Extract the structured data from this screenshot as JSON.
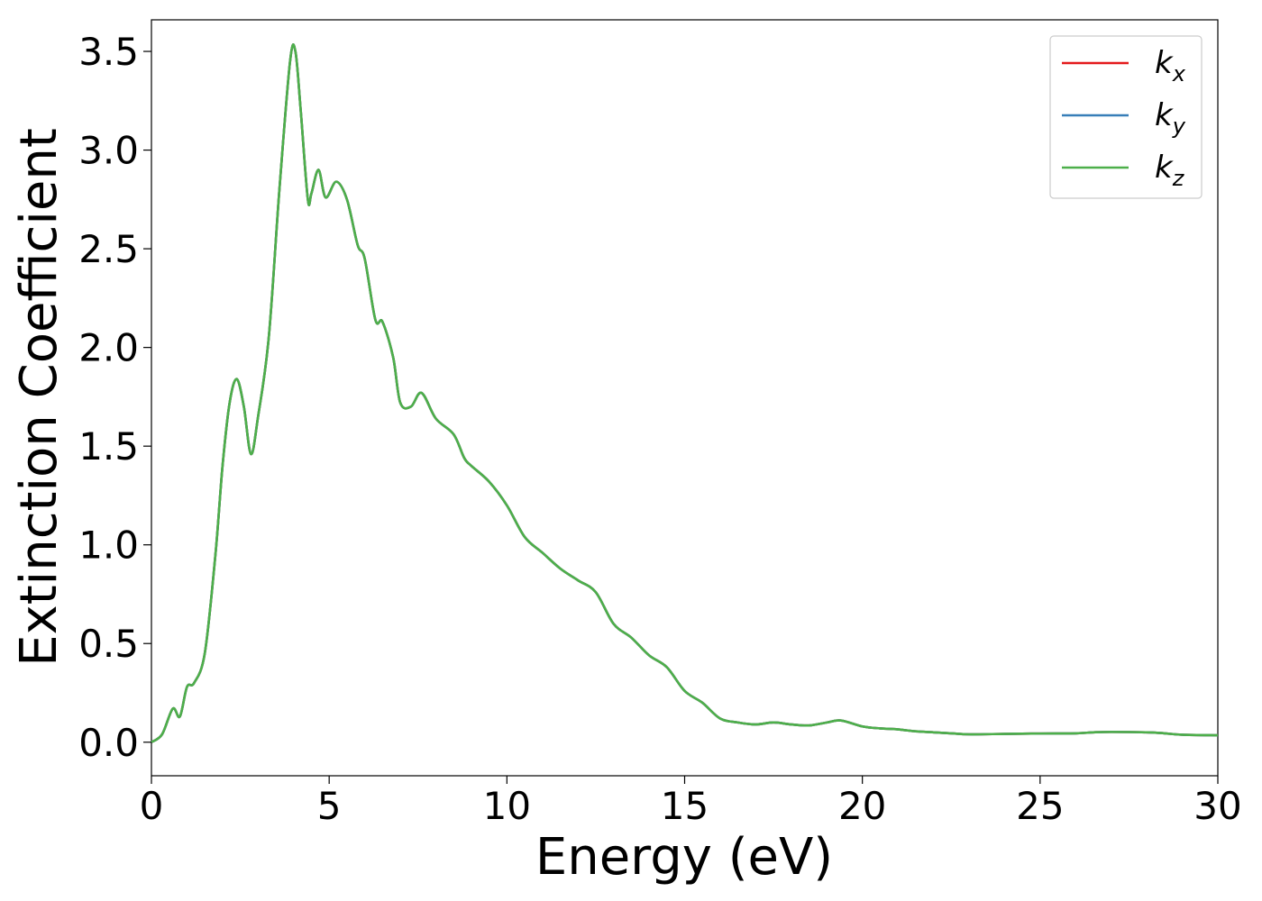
{
  "chart_data": {
    "type": "line",
    "xlabel": "Energy (eV)",
    "ylabel": "Extinction Coefficient",
    "xlim": [
      0,
      30
    ],
    "ylim": [
      -0.17,
      3.66
    ],
    "xticks": [
      "0",
      "5",
      "10",
      "15",
      "20",
      "25",
      "30"
    ],
    "yticks": [
      "0.0",
      "0.5",
      "1.0",
      "1.5",
      "2.0",
      "2.5",
      "3.0",
      "3.5"
    ],
    "grid": false,
    "legend_position": "top-right",
    "x": [
      0,
      0.3,
      0.6,
      0.8,
      1.0,
      1.2,
      1.5,
      1.8,
      2.0,
      2.2,
      2.4,
      2.6,
      2.8,
      3.0,
      3.3,
      3.6,
      3.9,
      4.05,
      4.2,
      4.4,
      4.5,
      4.7,
      4.9,
      5.2,
      5.5,
      5.8,
      6.0,
      6.3,
      6.5,
      6.8,
      7.0,
      7.3,
      7.6,
      8.0,
      8.5,
      8.8,
      9.0,
      9.5,
      10.0,
      10.5,
      11.0,
      11.5,
      12.0,
      12.5,
      13.0,
      13.5,
      14.0,
      14.5,
      15.0,
      15.5,
      16.0,
      16.5,
      17.0,
      17.5,
      18.0,
      18.5,
      19.0,
      19.4,
      20.0,
      20.5,
      21.0,
      21.5,
      22.0,
      22.5,
      23.0,
      24.0,
      25.0,
      26.0,
      26.5,
      27.0,
      28.0,
      28.5,
      29.0,
      30.0
    ],
    "series": [
      {
        "name": "k_x",
        "values": [
          0.0,
          0.04,
          0.17,
          0.13,
          0.28,
          0.3,
          0.45,
          0.95,
          1.4,
          1.72,
          1.84,
          1.7,
          1.46,
          1.65,
          2.05,
          2.8,
          3.45,
          3.5,
          3.2,
          2.75,
          2.78,
          2.9,
          2.76,
          2.84,
          2.75,
          2.52,
          2.45,
          2.14,
          2.13,
          1.95,
          1.72,
          1.7,
          1.77,
          1.64,
          1.56,
          1.44,
          1.4,
          1.32,
          1.2,
          1.04,
          0.96,
          0.88,
          0.82,
          0.76,
          0.6,
          0.53,
          0.44,
          0.38,
          0.26,
          0.2,
          0.12,
          0.1,
          0.09,
          0.1,
          0.09,
          0.085,
          0.1,
          0.11,
          0.08,
          0.07,
          0.065,
          0.055,
          0.05,
          0.045,
          0.04,
          0.042,
          0.044,
          0.045,
          0.05,
          0.052,
          0.05,
          0.045,
          0.038,
          0.035
        ]
      },
      {
        "name": "k_y",
        "values": [
          0.0,
          0.04,
          0.17,
          0.13,
          0.28,
          0.3,
          0.45,
          0.95,
          1.4,
          1.72,
          1.84,
          1.7,
          1.46,
          1.65,
          2.05,
          2.8,
          3.45,
          3.5,
          3.2,
          2.75,
          2.78,
          2.9,
          2.76,
          2.84,
          2.75,
          2.52,
          2.45,
          2.14,
          2.13,
          1.95,
          1.72,
          1.7,
          1.77,
          1.64,
          1.56,
          1.44,
          1.4,
          1.32,
          1.2,
          1.04,
          0.96,
          0.88,
          0.82,
          0.76,
          0.6,
          0.53,
          0.44,
          0.38,
          0.26,
          0.2,
          0.12,
          0.1,
          0.09,
          0.1,
          0.09,
          0.085,
          0.1,
          0.11,
          0.08,
          0.07,
          0.065,
          0.055,
          0.05,
          0.045,
          0.04,
          0.042,
          0.044,
          0.045,
          0.05,
          0.052,
          0.05,
          0.045,
          0.038,
          0.035
        ]
      },
      {
        "name": "k_z",
        "values": [
          0.0,
          0.04,
          0.17,
          0.13,
          0.28,
          0.3,
          0.45,
          0.95,
          1.4,
          1.72,
          1.84,
          1.7,
          1.46,
          1.65,
          2.05,
          2.8,
          3.45,
          3.5,
          3.2,
          2.75,
          2.78,
          2.9,
          2.76,
          2.84,
          2.75,
          2.52,
          2.45,
          2.14,
          2.13,
          1.95,
          1.72,
          1.7,
          1.77,
          1.64,
          1.56,
          1.44,
          1.4,
          1.32,
          1.2,
          1.04,
          0.96,
          0.88,
          0.82,
          0.76,
          0.6,
          0.53,
          0.44,
          0.38,
          0.26,
          0.2,
          0.12,
          0.1,
          0.09,
          0.1,
          0.09,
          0.085,
          0.1,
          0.11,
          0.08,
          0.07,
          0.065,
          0.055,
          0.05,
          0.045,
          0.04,
          0.042,
          0.044,
          0.045,
          0.05,
          0.052,
          0.05,
          0.045,
          0.038,
          0.035
        ]
      }
    ],
    "legend": [
      {
        "base": "k",
        "sub": "x"
      },
      {
        "base": "k",
        "sub": "y"
      },
      {
        "base": "k",
        "sub": "z"
      }
    ],
    "colors": [
      "#e41a1c",
      "#377eb8",
      "#4daf4a"
    ]
  }
}
